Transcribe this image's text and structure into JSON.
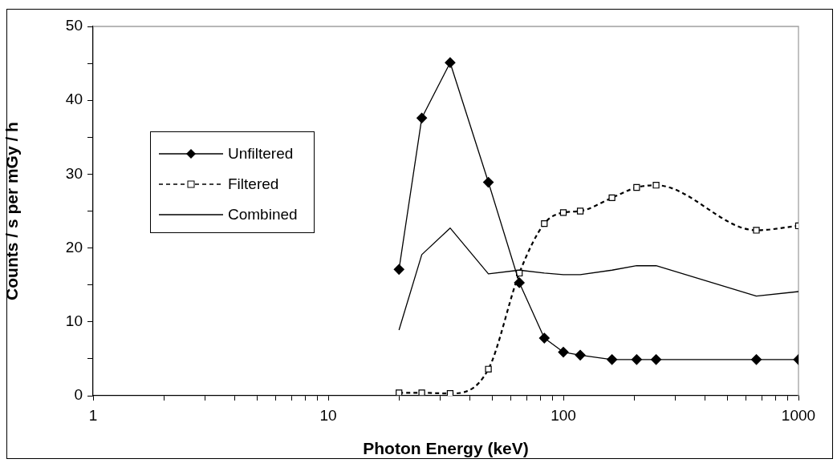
{
  "chart_data": {
    "type": "line",
    "xlabel": "Photon Energy (keV)",
    "ylabel": "Counts / s per mGy / h",
    "log": "x",
    "x": [
      20,
      25,
      33,
      48,
      65,
      83,
      100,
      118,
      161,
      205,
      248,
      662,
      1000
    ],
    "series": [
      {
        "name": "Unfiltered",
        "color": "#000000",
        "marker": "diamond",
        "line_style": "solid",
        "values": [
          17.1,
          37.6,
          45.1,
          28.9,
          15.3,
          7.8,
          5.9,
          5.5,
          4.9,
          4.9,
          4.9,
          4.9,
          4.9
        ]
      },
      {
        "name": "Filtered",
        "color": "#000000",
        "marker": "square",
        "line_style": "dashed",
        "values": [
          0.4,
          0.4,
          0.3,
          3.6,
          16.6,
          23.3,
          24.8,
          25.0,
          26.8,
          28.2,
          28.5,
          22.4,
          23.0
        ]
      },
      {
        "name": "Combined",
        "color": "#000000",
        "marker": "none",
        "line_style": "solid",
        "values": [
          8.9,
          19.1,
          22.7,
          16.5,
          17.0,
          16.6,
          16.4,
          16.4,
          17.0,
          17.6,
          17.6,
          13.5,
          14.1
        ]
      }
    ],
    "xlim": [
      1,
      1000
    ],
    "xticks": [
      1,
      {
        "value": 2,
        "label": null
      },
      {
        "value": 3,
        "label": null
      },
      {
        "value": 4,
        "label": null
      },
      {
        "value": 5,
        "label": null
      },
      {
        "value": 6,
        "label": null
      },
      {
        "value": 7,
        "label": null
      },
      {
        "value": 8,
        "label": null
      },
      {
        "value": 9,
        "label": null
      },
      10,
      {
        "value": 20,
        "label": null
      },
      {
        "value": 30,
        "label": null
      },
      {
        "value": 40,
        "label": null
      },
      {
        "value": 50,
        "label": null
      },
      {
        "value": 60,
        "label": null
      },
      {
        "value": 70,
        "label": null
      },
      {
        "value": 80,
        "label": null
      },
      {
        "value": 90,
        "label": null
      },
      100,
      {
        "value": 200,
        "label": null
      },
      {
        "value": 300,
        "label": null
      },
      {
        "value": 400,
        "label": null
      },
      {
        "value": 500,
        "label": null
      },
      {
        "value": 600,
        "label": null
      },
      {
        "value": 700,
        "label": null
      },
      {
        "value": 800,
        "label": null
      },
      {
        "value": 900,
        "label": null
      },
      1000
    ],
    "ylim": [
      0,
      50
    ],
    "yticks": [
      0,
      {
        "value": 5,
        "label": null
      },
      10,
      {
        "value": 15,
        "label": null
      },
      20,
      {
        "value": 25,
        "label": null
      },
      30,
      {
        "value": 35,
        "label": null
      },
      40,
      {
        "value": 45,
        "label": null
      },
      50
    ],
    "grid": false,
    "legend": "left"
  }
}
